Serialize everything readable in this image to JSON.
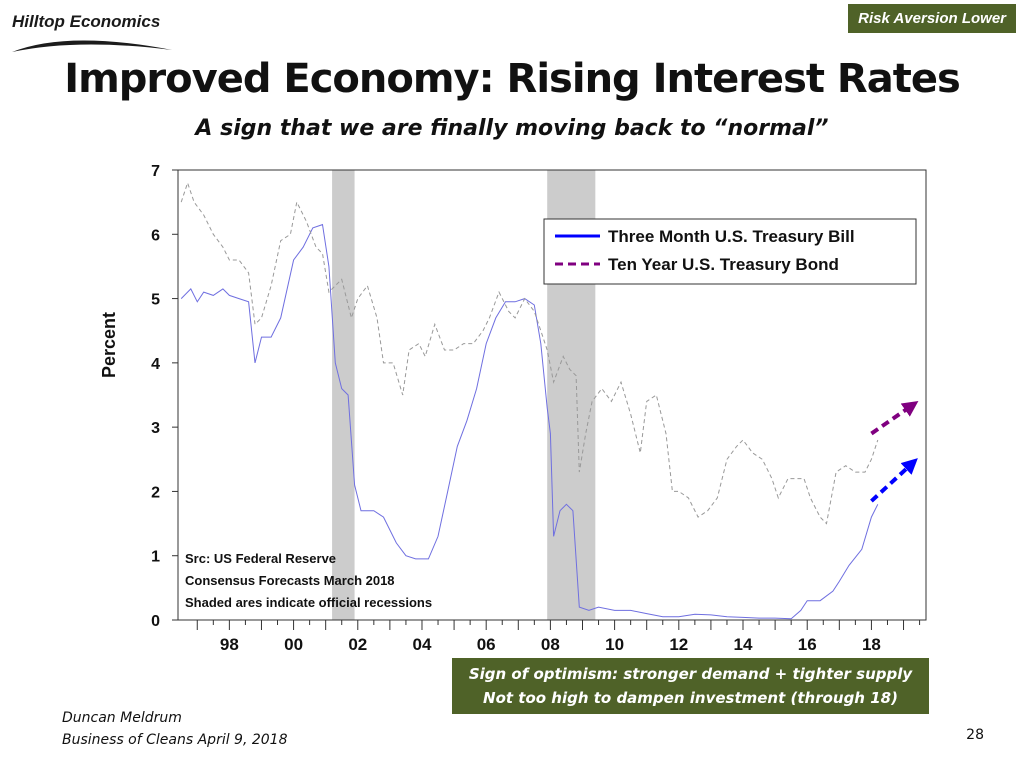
{
  "header": {
    "logo_text": "Hilltop Economics",
    "tag": "Risk Aversion Lower",
    "tag_color": "#4f6228"
  },
  "slide": {
    "title": "Improved Economy: Rising Interest Rates",
    "subtitle": "A sign that we are finally moving back to “normal”"
  },
  "callout": {
    "line1": "Sign of optimism: stronger demand + tighter supply",
    "line2": "Not too high to dampen investment (through 18)"
  },
  "footer": {
    "author": "Duncan Meldrum",
    "event": "Business of Cleans April 9, 2018",
    "page": "28"
  },
  "chart_data": {
    "type": "line",
    "ylabel": "Percent",
    "ylim": [
      0,
      7
    ],
    "y_ticks": [
      0,
      1,
      2,
      3,
      4,
      5,
      6,
      7
    ],
    "xlim": [
      1996.4,
      2019.7
    ],
    "x_ticks": [
      {
        "x": 1998,
        "label": "98"
      },
      {
        "x": 2000,
        "label": "00"
      },
      {
        "x": 2002,
        "label": "02"
      },
      {
        "x": 2004,
        "label": "04"
      },
      {
        "x": 2006,
        "label": "06"
      },
      {
        "x": 2008,
        "label": "08"
      },
      {
        "x": 2010,
        "label": "10"
      },
      {
        "x": 2012,
        "label": "12"
      },
      {
        "x": 2014,
        "label": "14"
      },
      {
        "x": 2016,
        "label": "16"
      },
      {
        "x": 2018,
        "label": "18"
      }
    ],
    "recessions": [
      [
        2001.2,
        2001.9
      ],
      [
        2007.9,
        2009.4
      ]
    ],
    "legend_position": "top-right",
    "annotations": [
      "Src: US Federal Reserve",
      "Consensus Forecasts March 2018",
      "Shaded ares indicate official recessions"
    ],
    "series": [
      {
        "name": "Three Month U.S. Treasury Bill",
        "color": "#0000ff",
        "forecast_arrow": [
          [
            2018.0,
            1.85
          ],
          [
            2019.3,
            2.45
          ]
        ],
        "points": [
          [
            1996.5,
            5.0
          ],
          [
            1996.8,
            5.15
          ],
          [
            1997.0,
            4.95
          ],
          [
            1997.2,
            5.1
          ],
          [
            1997.5,
            5.05
          ],
          [
            1997.8,
            5.15
          ],
          [
            1998.0,
            5.05
          ],
          [
            1998.3,
            5.0
          ],
          [
            1998.6,
            4.95
          ],
          [
            1998.8,
            4.0
          ],
          [
            1999.0,
            4.4
          ],
          [
            1999.3,
            4.4
          ],
          [
            1999.6,
            4.7
          ],
          [
            2000.0,
            5.6
          ],
          [
            2000.3,
            5.8
          ],
          [
            2000.6,
            6.1
          ],
          [
            2000.9,
            6.15
          ],
          [
            2001.1,
            5.5
          ],
          [
            2001.3,
            4.0
          ],
          [
            2001.5,
            3.6
          ],
          [
            2001.7,
            3.5
          ],
          [
            2001.9,
            2.1
          ],
          [
            2002.1,
            1.7
          ],
          [
            2002.5,
            1.7
          ],
          [
            2002.8,
            1.6
          ],
          [
            2003.2,
            1.2
          ],
          [
            2003.5,
            1.0
          ],
          [
            2003.8,
            0.95
          ],
          [
            2004.2,
            0.95
          ],
          [
            2004.5,
            1.3
          ],
          [
            2004.8,
            2.0
          ],
          [
            2005.1,
            2.7
          ],
          [
            2005.4,
            3.1
          ],
          [
            2005.7,
            3.6
          ],
          [
            2006.0,
            4.3
          ],
          [
            2006.3,
            4.7
          ],
          [
            2006.6,
            4.95
          ],
          [
            2006.9,
            4.95
          ],
          [
            2007.2,
            5.0
          ],
          [
            2007.5,
            4.9
          ],
          [
            2007.7,
            4.3
          ],
          [
            2007.9,
            3.3
          ],
          [
            2008.0,
            2.9
          ],
          [
            2008.1,
            1.3
          ],
          [
            2008.3,
            1.7
          ],
          [
            2008.5,
            1.8
          ],
          [
            2008.7,
            1.7
          ],
          [
            2008.9,
            0.2
          ],
          [
            2009.2,
            0.15
          ],
          [
            2009.5,
            0.2
          ],
          [
            2010.0,
            0.15
          ],
          [
            2010.5,
            0.15
          ],
          [
            2011.0,
            0.1
          ],
          [
            2011.5,
            0.05
          ],
          [
            2012.0,
            0.05
          ],
          [
            2012.5,
            0.09
          ],
          [
            2013.0,
            0.08
          ],
          [
            2013.5,
            0.05
          ],
          [
            2014.0,
            0.04
          ],
          [
            2014.5,
            0.03
          ],
          [
            2015.0,
            0.03
          ],
          [
            2015.5,
            0.02
          ],
          [
            2015.8,
            0.15
          ],
          [
            2016.0,
            0.3
          ],
          [
            2016.4,
            0.3
          ],
          [
            2016.8,
            0.45
          ],
          [
            2017.0,
            0.6
          ],
          [
            2017.3,
            0.85
          ],
          [
            2017.7,
            1.1
          ],
          [
            2018.0,
            1.6
          ],
          [
            2018.2,
            1.8
          ]
        ]
      },
      {
        "name": "Ten Year U.S. Treasury Bond",
        "color": "#800080",
        "forecast_arrow": [
          [
            2018.0,
            2.9
          ],
          [
            2019.3,
            3.35
          ]
        ],
        "points": [
          [
            1996.5,
            6.5
          ],
          [
            1996.7,
            6.8
          ],
          [
            1996.9,
            6.5
          ],
          [
            1997.2,
            6.3
          ],
          [
            1997.5,
            6.0
          ],
          [
            1997.8,
            5.8
          ],
          [
            1998.0,
            5.6
          ],
          [
            1998.3,
            5.6
          ],
          [
            1998.6,
            5.4
          ],
          [
            1998.8,
            4.6
          ],
          [
            1999.0,
            4.7
          ],
          [
            1999.3,
            5.2
          ],
          [
            1999.6,
            5.9
          ],
          [
            1999.9,
            6.0
          ],
          [
            2000.1,
            6.5
          ],
          [
            2000.4,
            6.2
          ],
          [
            2000.7,
            5.8
          ],
          [
            2000.9,
            5.7
          ],
          [
            2001.1,
            5.1
          ],
          [
            2001.3,
            5.2
          ],
          [
            2001.5,
            5.3
          ],
          [
            2001.8,
            4.7
          ],
          [
            2002.0,
            5.0
          ],
          [
            2002.3,
            5.2
          ],
          [
            2002.6,
            4.7
          ],
          [
            2002.8,
            4.0
          ],
          [
            2003.1,
            4.0
          ],
          [
            2003.4,
            3.5
          ],
          [
            2003.6,
            4.2
          ],
          [
            2003.9,
            4.3
          ],
          [
            2004.1,
            4.1
          ],
          [
            2004.4,
            4.6
          ],
          [
            2004.7,
            4.2
          ],
          [
            2005.0,
            4.2
          ],
          [
            2005.3,
            4.3
          ],
          [
            2005.6,
            4.3
          ],
          [
            2005.9,
            4.5
          ],
          [
            2006.1,
            4.7
          ],
          [
            2006.4,
            5.1
          ],
          [
            2006.7,
            4.8
          ],
          [
            2006.9,
            4.7
          ],
          [
            2007.2,
            5.0
          ],
          [
            2007.5,
            4.8
          ],
          [
            2007.7,
            4.5
          ],
          [
            2007.9,
            4.2
          ],
          [
            2008.1,
            3.7
          ],
          [
            2008.4,
            4.1
          ],
          [
            2008.6,
            3.9
          ],
          [
            2008.8,
            3.8
          ],
          [
            2008.9,
            2.3
          ],
          [
            2009.1,
            2.9
          ],
          [
            2009.3,
            3.4
          ],
          [
            2009.6,
            3.6
          ],
          [
            2009.9,
            3.4
          ],
          [
            2010.2,
            3.7
          ],
          [
            2010.5,
            3.2
          ],
          [
            2010.8,
            2.6
          ],
          [
            2011.0,
            3.4
          ],
          [
            2011.3,
            3.5
          ],
          [
            2011.6,
            2.9
          ],
          [
            2011.8,
            2.0
          ],
          [
            2012.0,
            2.0
          ],
          [
            2012.3,
            1.9
          ],
          [
            2012.6,
            1.6
          ],
          [
            2012.9,
            1.7
          ],
          [
            2013.2,
            1.9
          ],
          [
            2013.5,
            2.5
          ],
          [
            2013.8,
            2.7
          ],
          [
            2014.0,
            2.8
          ],
          [
            2014.3,
            2.6
          ],
          [
            2014.6,
            2.5
          ],
          [
            2014.9,
            2.2
          ],
          [
            2015.1,
            1.9
          ],
          [
            2015.4,
            2.2
          ],
          [
            2015.7,
            2.2
          ],
          [
            2015.9,
            2.2
          ],
          [
            2016.1,
            1.9
          ],
          [
            2016.4,
            1.6
          ],
          [
            2016.6,
            1.5
          ],
          [
            2016.9,
            2.3
          ],
          [
            2017.2,
            2.4
          ],
          [
            2017.5,
            2.3
          ],
          [
            2017.8,
            2.3
          ],
          [
            2018.0,
            2.5
          ],
          [
            2018.2,
            2.8
          ]
        ]
      }
    ]
  }
}
